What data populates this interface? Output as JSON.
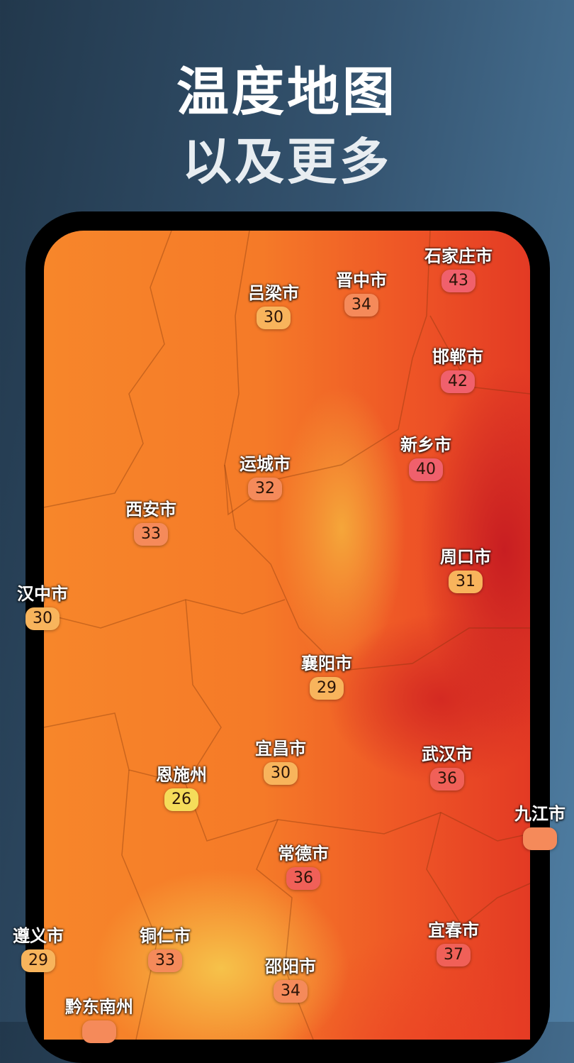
{
  "header": {
    "title": "温度地图",
    "subtitle": "以及更多"
  },
  "colors": {
    "hot": "#f0606c",
    "warm": "#f06058",
    "mid": "#f58a5a",
    "mild": "#f8b45c",
    "cool": "#f5dc5a"
  },
  "cities": [
    {
      "name": "石家庄市",
      "temp": "43"
    },
    {
      "name": "晋中市",
      "temp": "34"
    },
    {
      "name": "吕梁市",
      "temp": "30"
    },
    {
      "name": "邯郸市",
      "temp": "42"
    },
    {
      "name": "新乡市",
      "temp": "40"
    },
    {
      "name": "运城市",
      "temp": "32"
    },
    {
      "name": "西安市",
      "temp": "33"
    },
    {
      "name": "周口市",
      "temp": "31"
    },
    {
      "name": "汉中市",
      "temp": "30"
    },
    {
      "name": "襄阳市",
      "temp": "29"
    },
    {
      "name": "宜昌市",
      "temp": "30"
    },
    {
      "name": "武汉市",
      "temp": "36"
    },
    {
      "name": "恩施州",
      "temp": "26"
    },
    {
      "name": "九江市",
      "temp": ""
    },
    {
      "name": "常德市",
      "temp": "36"
    },
    {
      "name": "遵义市",
      "temp": "29"
    },
    {
      "name": "铜仁市",
      "temp": "33"
    },
    {
      "name": "宜春市",
      "temp": "37"
    },
    {
      "name": "邵阳市",
      "temp": "34"
    },
    {
      "name": "黔东南州",
      "temp": ""
    }
  ]
}
